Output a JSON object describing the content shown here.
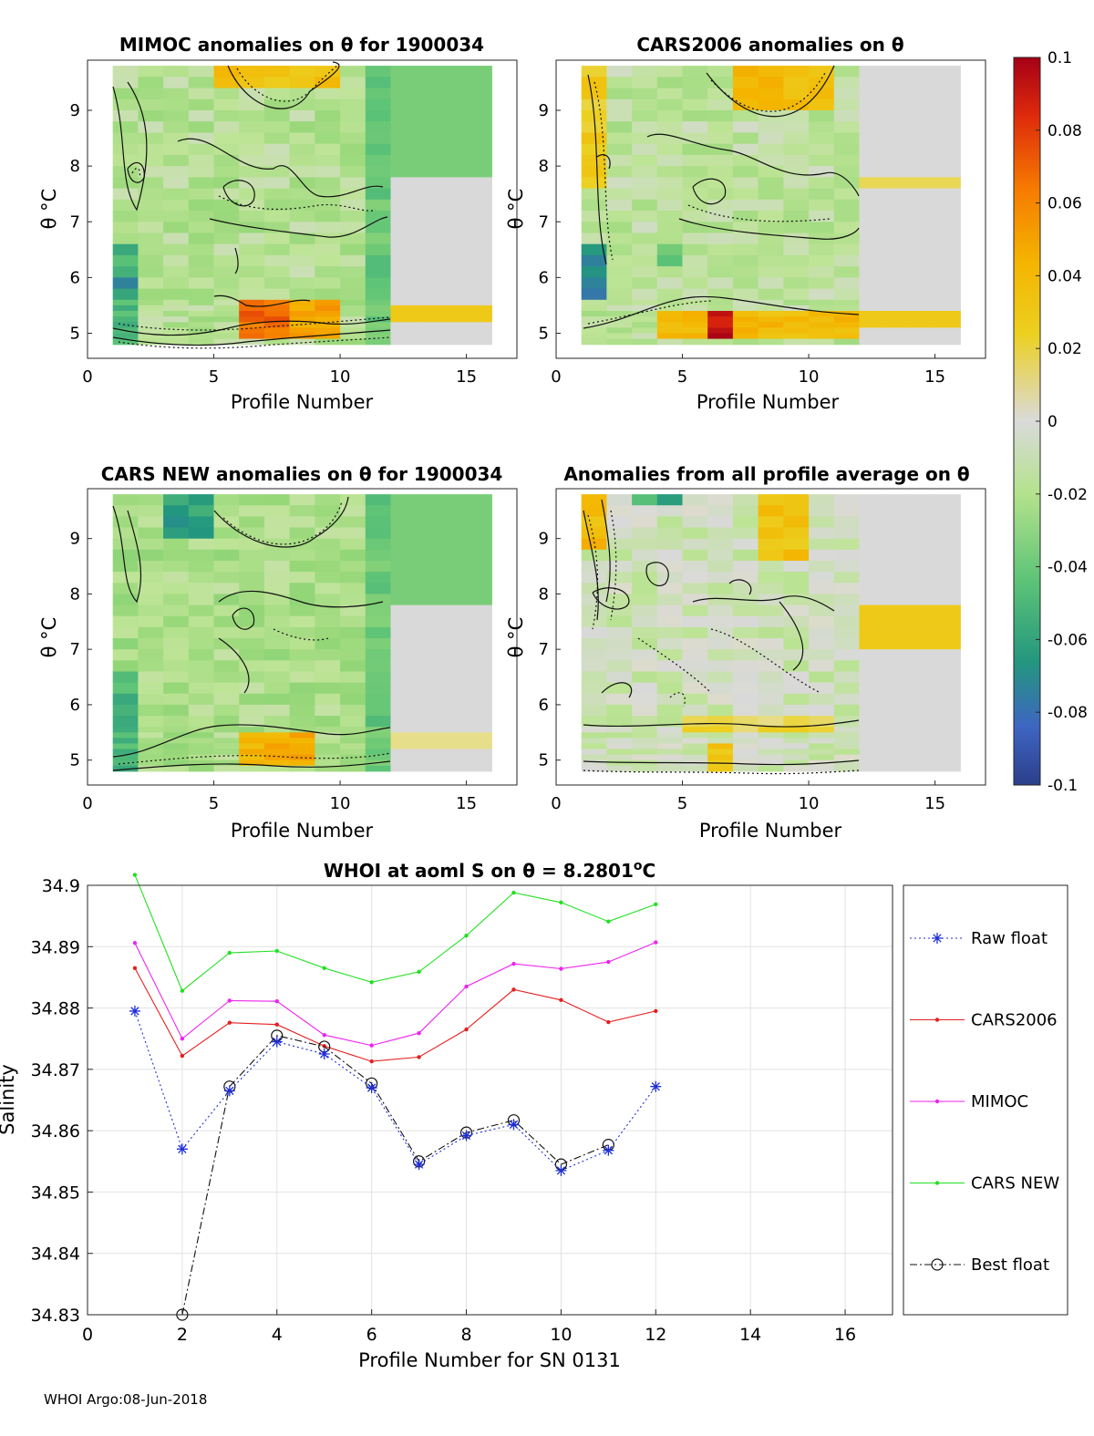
{
  "colors": {
    "raw": "#1f2fd6",
    "cars2006": "#e52020",
    "mimoc": "#ef23ef",
    "carsnew": "#22e022",
    "best": "#111111",
    "grid": "#e2e2e2",
    "nan": "#d9d9d9"
  },
  "footer": "WHOI Argo:08-Jun-2018",
  "colorbar": {
    "ticks": [
      "0.1",
      "0.08",
      "0.06",
      "0.04",
      "0.02",
      "0",
      "-0.02",
      "-0.04",
      "-0.06",
      "-0.08",
      "-0.1"
    ],
    "min": -0.1,
    "max": 0.1
  },
  "chart_data": [
    {
      "type": "heatmap",
      "title": "MIMOC anomalies on θ  for 1900034",
      "xlabel": "Profile Number",
      "ylabel": "θ °C",
      "xlim": [
        0,
        17
      ],
      "ylim": [
        4.55,
        9.9
      ],
      "xticks": [
        "0",
        "5",
        "10",
        "15"
      ],
      "yticks": [
        "5",
        "6",
        "7",
        "8",
        "9"
      ]
    },
    {
      "type": "heatmap",
      "title": "CARS2006 anomalies on θ",
      "xlabel": "Profile Number",
      "ylabel": "θ °C",
      "xlim": [
        0,
        17
      ],
      "ylim": [
        4.55,
        9.9
      ],
      "xticks": [
        "0",
        "5",
        "10",
        "15"
      ],
      "yticks": [
        "5",
        "6",
        "7",
        "8",
        "9"
      ]
    },
    {
      "type": "heatmap",
      "title": "CARS NEW anomalies on θ for 1900034",
      "xlabel": "Profile Number",
      "ylabel": "θ °C",
      "xlim": [
        0,
        17
      ],
      "ylim": [
        4.55,
        9.9
      ],
      "xticks": [
        "0",
        "5",
        "10",
        "15"
      ],
      "yticks": [
        "5",
        "6",
        "7",
        "8",
        "9"
      ]
    },
    {
      "type": "heatmap",
      "title": "Anomalies from all profile average on θ",
      "xlabel": "Profile Number",
      "ylabel": "θ °C",
      "xlim": [
        0,
        17
      ],
      "ylim": [
        4.55,
        9.9
      ],
      "xticks": [
        "0",
        "5",
        "10",
        "15"
      ],
      "yticks": [
        "5",
        "6",
        "7",
        "8",
        "9"
      ]
    },
    {
      "type": "line",
      "title": "WHOI at aoml S on θ = 8.2801°C",
      "xlabel": "Profile Number for SN 0131",
      "ylabel": "Salinity",
      "xlim": [
        0,
        17
      ],
      "ylim": [
        34.83,
        34.9
      ],
      "xticks": [
        "0",
        "2",
        "4",
        "6",
        "8",
        "10",
        "12",
        "14",
        "16"
      ],
      "yticks": [
        "34.83",
        "34.84",
        "34.85",
        "34.86",
        "34.87",
        "34.88",
        "34.89",
        "34.9"
      ],
      "series": [
        {
          "name": "Raw float",
          "x": [
            1,
            2,
            3,
            4,
            5,
            6,
            7,
            8,
            9,
            10,
            11,
            12
          ],
          "values": [
            34.8795,
            34.857,
            34.8665,
            34.8745,
            34.8725,
            34.867,
            34.8545,
            34.8592,
            34.861,
            34.8535,
            34.8568,
            34.8672
          ]
        },
        {
          "name": "CARS2006",
          "x": [
            1,
            2,
            3,
            4,
            5,
            6,
            7,
            8,
            9,
            10,
            11,
            12
          ],
          "values": [
            34.8865,
            34.8722,
            34.8776,
            34.8773,
            34.8738,
            34.8713,
            34.872,
            34.8765,
            34.883,
            34.8813,
            34.8777,
            34.8795
          ]
        },
        {
          "name": "MIMOC",
          "x": [
            1,
            2,
            3,
            4,
            5,
            6,
            7,
            8,
            9,
            10,
            11,
            12
          ],
          "values": [
            34.8906,
            34.875,
            34.8812,
            34.8811,
            34.8756,
            34.8739,
            34.8759,
            34.8835,
            34.8872,
            34.8864,
            34.8875,
            34.8907
          ]
        },
        {
          "name": "CARS NEW",
          "x": [
            1,
            2,
            3,
            4,
            5,
            6,
            7,
            8,
            9,
            10,
            11,
            12
          ],
          "values": [
            34.9017,
            34.8828,
            34.889,
            34.8893,
            34.8865,
            34.8842,
            34.8859,
            34.8918,
            34.8988,
            34.8972,
            34.8941,
            34.8969
          ]
        },
        {
          "name": "Best float",
          "x": [
            2,
            3,
            4,
            5,
            6,
            7,
            8,
            9,
            10,
            11
          ],
          "values": [
            34.83,
            34.8672,
            34.8755,
            34.8737,
            34.8677,
            34.855,
            34.8597,
            34.8617,
            34.8545,
            34.8577
          ]
        }
      ]
    }
  ]
}
